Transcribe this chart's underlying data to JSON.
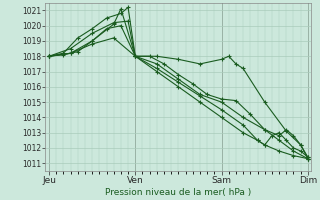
{
  "title": "Pression niveau de la mer( hPa )",
  "bg_color": "#cce8dc",
  "grid_color": "#aaccbb",
  "line_color": "#1a5c20",
  "ylim": [
    1010.5,
    1021.5
  ],
  "yticks": [
    1011,
    1012,
    1013,
    1014,
    1015,
    1016,
    1017,
    1018,
    1019,
    1020,
    1021
  ],
  "day_labels": [
    "Jeu",
    "Ven",
    "Sam",
    "Dim"
  ],
  "day_positions": [
    0,
    24,
    48,
    72
  ],
  "xlim": [
    -1,
    73
  ],
  "lines": [
    {
      "pts": [
        [
          0,
          1018.0
        ],
        [
          6,
          1018.2
        ],
        [
          12,
          1019.0
        ],
        [
          18,
          1020.1
        ],
        [
          20,
          1021.1
        ],
        [
          24,
          1018.0
        ],
        [
          30,
          1018.0
        ],
        [
          36,
          1017.8
        ],
        [
          42,
          1017.5
        ],
        [
          48,
          1017.8
        ],
        [
          50,
          1018.0
        ],
        [
          52,
          1017.5
        ],
        [
          54,
          1017.2
        ],
        [
          60,
          1015.0
        ],
        [
          66,
          1013.1
        ],
        [
          70,
          1012.2
        ],
        [
          72,
          1011.3
        ]
      ]
    },
    {
      "pts": [
        [
          0,
          1018.0
        ],
        [
          4,
          1018.2
        ],
        [
          8,
          1019.2
        ],
        [
          12,
          1019.8
        ],
        [
          16,
          1020.5
        ],
        [
          20,
          1020.8
        ],
        [
          22,
          1021.2
        ],
        [
          24,
          1018.0
        ],
        [
          28,
          1018.0
        ],
        [
          32,
          1017.5
        ],
        [
          36,
          1016.8
        ],
        [
          40,
          1016.2
        ],
        [
          44,
          1015.5
        ],
        [
          48,
          1015.2
        ],
        [
          52,
          1015.1
        ],
        [
          56,
          1014.2
        ],
        [
          60,
          1013.2
        ],
        [
          64,
          1012.5
        ],
        [
          68,
          1011.8
        ],
        [
          72,
          1011.3
        ]
      ]
    },
    {
      "pts": [
        [
          0,
          1018.0
        ],
        [
          6,
          1018.5
        ],
        [
          12,
          1019.5
        ],
        [
          18,
          1020.2
        ],
        [
          22,
          1020.3
        ],
        [
          24,
          1018.0
        ],
        [
          30,
          1017.5
        ],
        [
          36,
          1016.5
        ],
        [
          42,
          1015.5
        ],
        [
          48,
          1015.0
        ],
        [
          54,
          1014.0
        ],
        [
          60,
          1013.2
        ],
        [
          64,
          1012.8
        ],
        [
          66,
          1013.2
        ],
        [
          68,
          1012.8
        ],
        [
          70,
          1012.2
        ],
        [
          72,
          1011.4
        ]
      ]
    },
    {
      "pts": [
        [
          0,
          1018.0
        ],
        [
          4,
          1018.1
        ],
        [
          8,
          1018.3
        ],
        [
          12,
          1019.0
        ],
        [
          16,
          1019.8
        ],
        [
          20,
          1020.0
        ],
        [
          24,
          1018.0
        ],
        [
          30,
          1017.0
        ],
        [
          36,
          1016.0
        ],
        [
          42,
          1015.0
        ],
        [
          48,
          1014.0
        ],
        [
          54,
          1013.0
        ],
        [
          58,
          1012.5
        ],
        [
          60,
          1012.2
        ],
        [
          62,
          1012.8
        ],
        [
          64,
          1013.0
        ],
        [
          66,
          1012.5
        ],
        [
          68,
          1012.0
        ],
        [
          70,
          1011.8
        ],
        [
          72,
          1011.4
        ]
      ]
    },
    {
      "pts": [
        [
          0,
          1018.0
        ],
        [
          6,
          1018.2
        ],
        [
          12,
          1018.8
        ],
        [
          18,
          1019.2
        ],
        [
          24,
          1018.0
        ],
        [
          30,
          1017.2
        ],
        [
          36,
          1016.3
        ],
        [
          42,
          1015.4
        ],
        [
          48,
          1014.5
        ],
        [
          54,
          1013.5
        ],
        [
          58,
          1012.5
        ],
        [
          60,
          1012.2
        ],
        [
          64,
          1011.8
        ],
        [
          68,
          1011.5
        ],
        [
          72,
          1011.3
        ]
      ]
    }
  ]
}
